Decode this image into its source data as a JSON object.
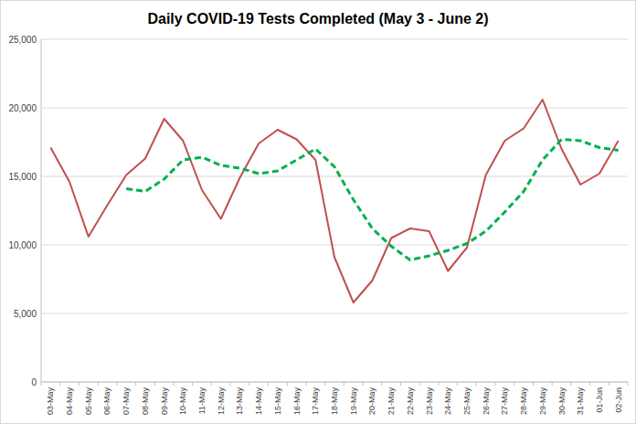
{
  "chart_data": {
    "type": "line",
    "title": "Daily COVID-19 Tests Completed (May 3 - June 2)",
    "categories": [
      "03-May",
      "04-May",
      "05-May",
      "06-May",
      "07-May",
      "08-May",
      "09-May",
      "10-May",
      "11-May",
      "12-May",
      "13-May",
      "14-May",
      "15-May",
      "16-May",
      "17-May",
      "18-May",
      "19-May",
      "20-May",
      "21-May",
      "22-May",
      "23-May",
      "24-May",
      "25-May",
      "26-May",
      "27-May",
      "28-May",
      "29-May",
      "30-May",
      "31-May",
      "01-Jun",
      "02-Jun"
    ],
    "series": [
      {
        "color": "#c0504d",
        "line_style": "solid",
        "values": [
          17100,
          14600,
          10600,
          12900,
          15100,
          16300,
          19200,
          17600,
          14000,
          11900,
          14900,
          17400,
          18400,
          17700,
          16200,
          9100,
          5800,
          7400,
          10500,
          11200,
          11000,
          8100,
          9800,
          15100,
          17600,
          18500,
          20600,
          17000,
          14400,
          15200,
          17600
        ]
      },
      {
        "color": "#00b050",
        "line_style": "dashed",
        "values": [
          null,
          null,
          null,
          null,
          14100,
          13900,
          14800,
          16200,
          16400,
          15800,
          15600,
          15200,
          15400,
          16200,
          17000,
          15700,
          13300,
          11200,
          9900,
          8900,
          9200,
          9600,
          10100,
          11000,
          12400,
          13900,
          16200,
          17700,
          17600,
          17100,
          16900
        ]
      }
    ],
    "ylim": [
      0,
      25000
    ],
    "yticks": [
      0,
      {
        "value": 5000,
        "label": "5,000"
      },
      {
        "value": 10000,
        "label": "10,000"
      },
      {
        "value": 15000,
        "label": "15,000"
      },
      {
        "value": 20000,
        "label": "20,000"
      },
      {
        "value": 25000,
        "label": "25,000"
      }
    ],
    "grid": true
  }
}
